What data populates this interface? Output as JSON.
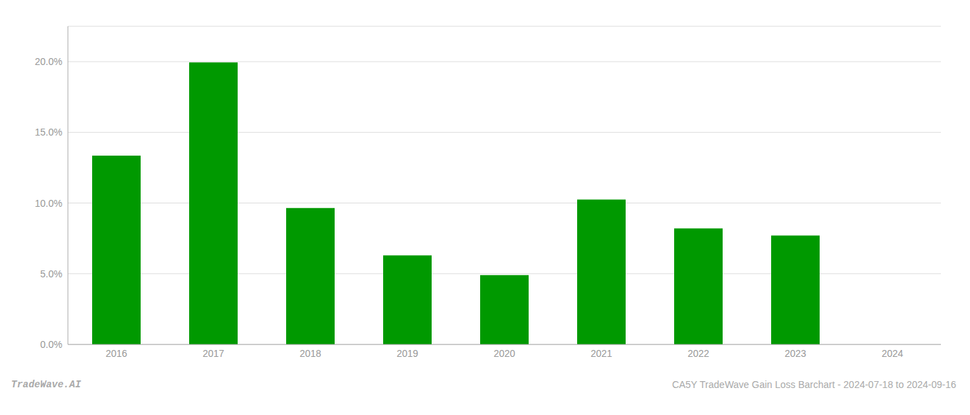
{
  "chart_data": {
    "type": "bar",
    "categories": [
      "2016",
      "2017",
      "2018",
      "2019",
      "2020",
      "2021",
      "2022",
      "2023",
      "2024"
    ],
    "values": [
      0.1335,
      0.1995,
      0.0965,
      0.063,
      0.049,
      0.1025,
      0.082,
      0.077,
      null
    ],
    "color": "#009900",
    "ylim": [
      0,
      0.225
    ],
    "yticks": [
      {
        "value": 0.0,
        "label": "0.0%"
      },
      {
        "value": 0.05,
        "label": "5.0%"
      },
      {
        "value": 0.1,
        "label": "10.0%"
      },
      {
        "value": 0.15,
        "label": "15.0%"
      },
      {
        "value": 0.2,
        "label": "20.0%"
      }
    ],
    "grid": true,
    "annotations": [
      "TradeWave.AI",
      "CA5Y TradeWave Gain Loss Barchart - 2024-07-18 to 2024-09-16"
    ]
  }
}
